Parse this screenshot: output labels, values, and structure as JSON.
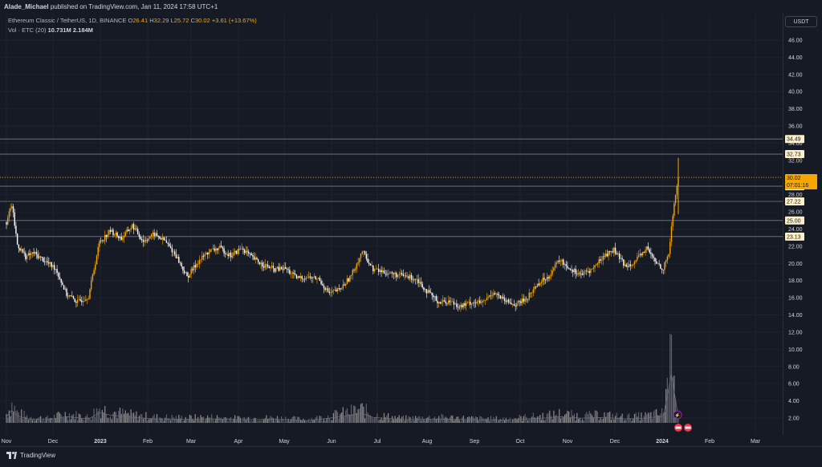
{
  "header": {
    "author": "Alade_Michael",
    "published_text": "published on TradingView.com, Jan 11, 2024 17:58 UTC+1"
  },
  "legend": {
    "symbol": "Ethereum Classic / TetherUS, 1D, BINANCE",
    "open_label": "O",
    "open": "26.41",
    "high_label": "H",
    "high": "32.29",
    "low_label": "L",
    "low": "25.72",
    "close_label": "C",
    "close": "30.02",
    "change": "+3.61 (+13.67%)",
    "vol_label": "Vol · ETC (20)",
    "vol_value": "10.731M",
    "vol_ma": "2.184M"
  },
  "currency": "USDT",
  "footer": {
    "brand": "TradingView"
  },
  "colors": {
    "background": "#161a25",
    "up": "#f7a600",
    "down": "#ffffff",
    "grid": "#2a2e39",
    "level": "#787b86"
  },
  "chart_data": {
    "type": "candlestick",
    "title": "Ethereum Classic / TetherUS, 1D, BINANCE",
    "y_ticks": [
      "46.00",
      "44.00",
      "42.00",
      "40.00",
      "38.00",
      "36.00",
      "34.00",
      "32.00",
      "30.00",
      "28.00",
      "26.00",
      "24.00",
      "22.00",
      "20.00",
      "18.00",
      "16.00",
      "14.00",
      "12.00",
      "10.00",
      "8.00",
      "6.00",
      "4.00",
      "2.00"
    ],
    "x_ticks": [
      "Nov",
      "Dec",
      "2023",
      "Feb",
      "Mar",
      "Apr",
      "May",
      "Jun",
      "Jul",
      "Aug",
      "Sep",
      "Oct",
      "Nov",
      "Dec",
      "2024",
      "Feb",
      "Mar"
    ],
    "ylim": [
      0,
      48
    ],
    "price_levels": [
      "34.49",
      "32.73",
      "28.99",
      "27.22",
      "25.00",
      "23.13"
    ],
    "last_price": {
      "value": "30.02",
      "countdown": "07:01:16"
    },
    "price_path": [
      [
        0,
        24.8
      ],
      [
        4,
        26.8
      ],
      [
        8,
        22.2
      ],
      [
        14,
        20.8
      ],
      [
        20,
        21.2
      ],
      [
        28,
        20.3
      ],
      [
        36,
        19.4
      ],
      [
        44,
        16.4
      ],
      [
        52,
        15.5
      ],
      [
        60,
        16.2
      ],
      [
        68,
        22.5
      ],
      [
        76,
        23.8
      ],
      [
        84,
        22.9
      ],
      [
        92,
        24.4
      ],
      [
        100,
        22.6
      ],
      [
        108,
        23.4
      ],
      [
        116,
        22.6
      ],
      [
        124,
        20.9
      ],
      [
        132,
        18.4
      ],
      [
        140,
        20.2
      ],
      [
        148,
        21.4
      ],
      [
        156,
        21.8
      ],
      [
        164,
        20.9
      ],
      [
        172,
        21.8
      ],
      [
        180,
        20.6
      ],
      [
        188,
        19.8
      ],
      [
        196,
        19.3
      ],
      [
        204,
        19.4
      ],
      [
        212,
        18.3
      ],
      [
        220,
        18.4
      ],
      [
        228,
        18.2
      ],
      [
        236,
        16.5
      ],
      [
        244,
        17.0
      ],
      [
        252,
        18.6
      ],
      [
        260,
        21.4
      ],
      [
        268,
        19.3
      ],
      [
        276,
        19.0
      ],
      [
        284,
        18.7
      ],
      [
        292,
        18.5
      ],
      [
        300,
        18.2
      ],
      [
        308,
        16.6
      ],
      [
        316,
        15.5
      ],
      [
        324,
        15.6
      ],
      [
        332,
        15.0
      ],
      [
        340,
        15.5
      ],
      [
        348,
        15.4
      ],
      [
        356,
        16.7
      ],
      [
        364,
        15.6
      ],
      [
        372,
        15.2
      ],
      [
        380,
        15.9
      ],
      [
        388,
        17.6
      ],
      [
        396,
        18.5
      ],
      [
        404,
        20.4
      ],
      [
        412,
        19.4
      ],
      [
        420,
        18.7
      ],
      [
        428,
        19.3
      ],
      [
        436,
        20.8
      ],
      [
        444,
        21.6
      ],
      [
        452,
        19.7
      ],
      [
        460,
        20.3
      ],
      [
        468,
        21.8
      ],
      [
        474,
        20.2
      ],
      [
        480,
        19.4
      ],
      [
        484,
        21.2
      ],
      [
        488,
        27.0
      ],
      [
        491,
        30.02
      ]
    ],
    "volume_path": [
      [
        0,
        1.6
      ],
      [
        4,
        3.2
      ],
      [
        8,
        1.8
      ],
      [
        16,
        1.0
      ],
      [
        30,
        0.8
      ],
      [
        44,
        1.6
      ],
      [
        60,
        1.0
      ],
      [
        68,
        2.6
      ],
      [
        76,
        2.0
      ],
      [
        92,
        1.4
      ],
      [
        110,
        1.0
      ],
      [
        130,
        0.9
      ],
      [
        150,
        1.0
      ],
      [
        170,
        0.8
      ],
      [
        196,
        0.9
      ],
      [
        220,
        0.6
      ],
      [
        236,
        1.2
      ],
      [
        260,
        2.4
      ],
      [
        268,
        1.4
      ],
      [
        290,
        0.8
      ],
      [
        316,
        1.0
      ],
      [
        340,
        0.8
      ],
      [
        364,
        0.7
      ],
      [
        396,
        1.3
      ],
      [
        404,
        1.6
      ],
      [
        420,
        1.2
      ],
      [
        436,
        1.4
      ],
      [
        452,
        1.0
      ],
      [
        466,
        1.2
      ],
      [
        480,
        1.7
      ],
      [
        486,
        12.5
      ],
      [
        491,
        1.5
      ]
    ],
    "events": [
      "dividend",
      "split"
    ]
  }
}
